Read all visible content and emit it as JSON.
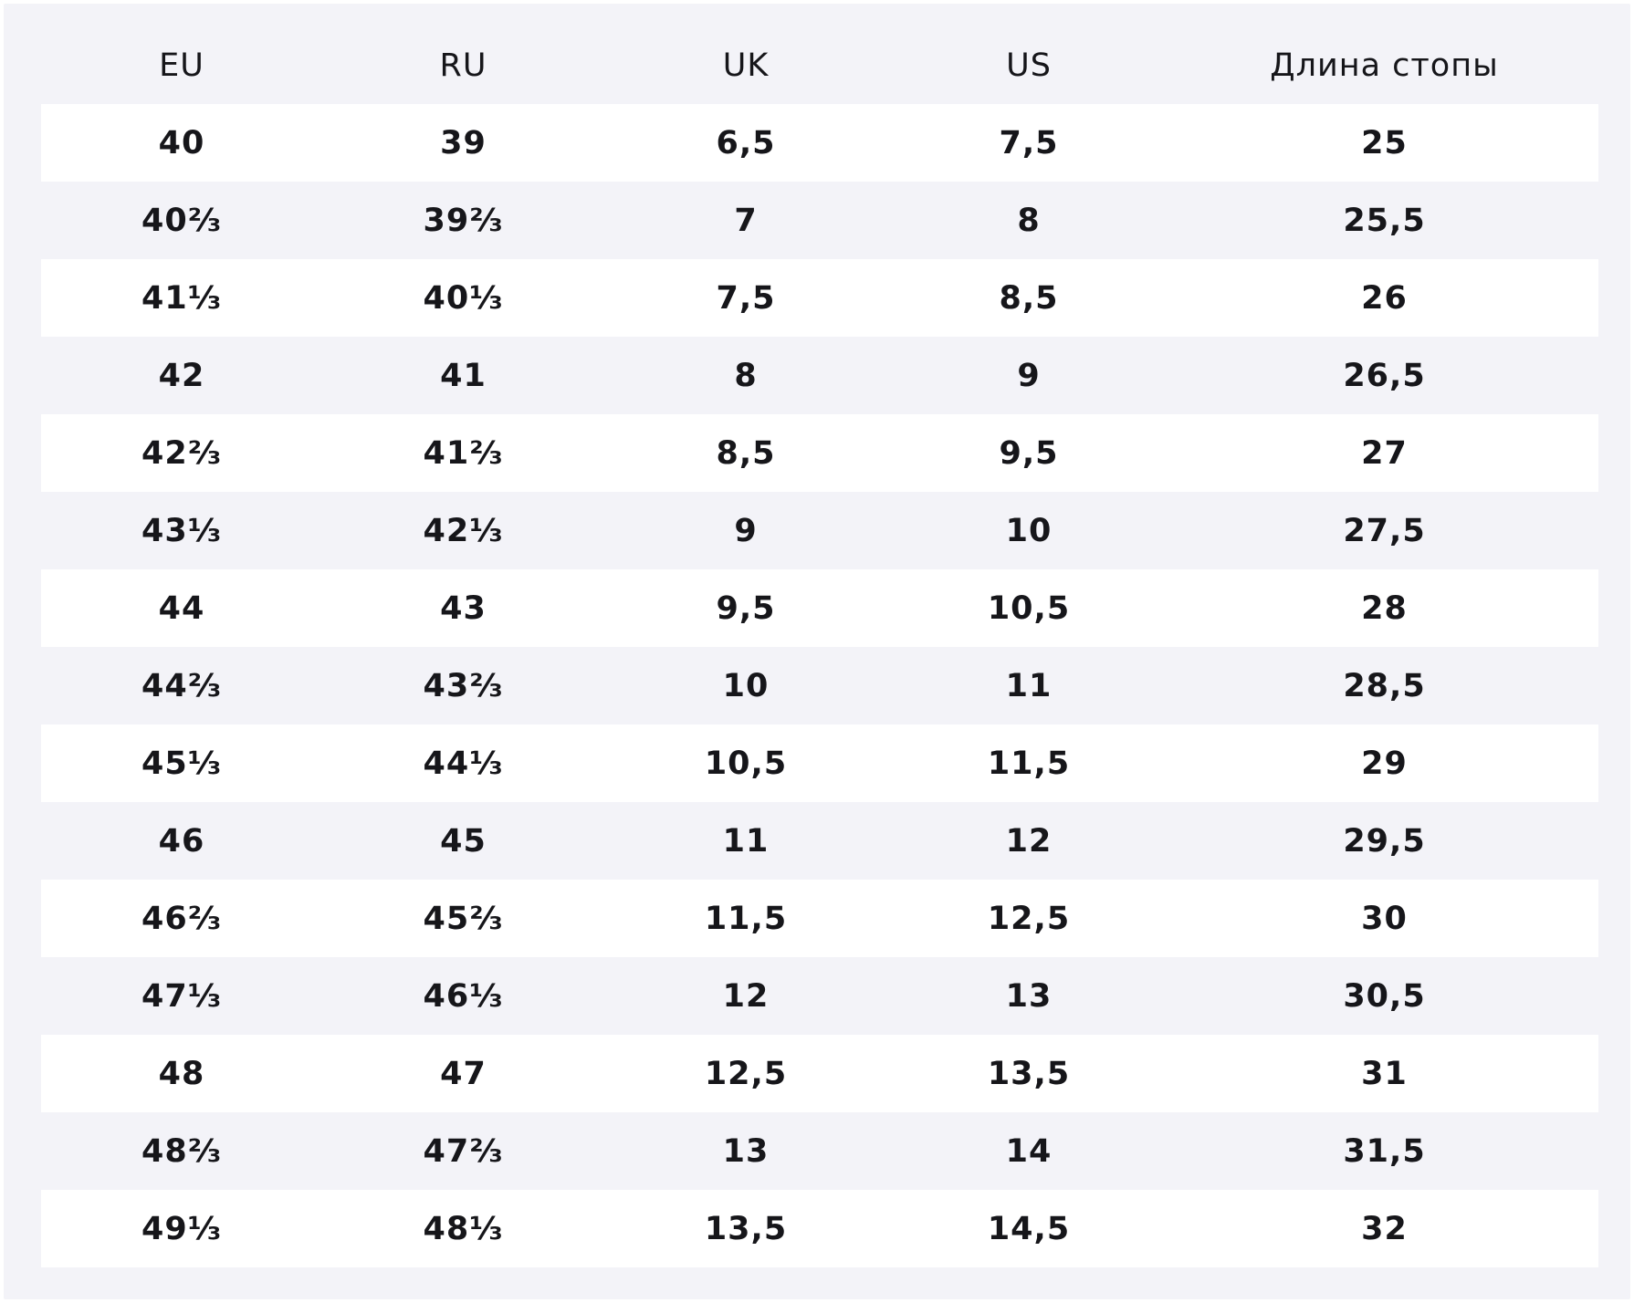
{
  "size_table": {
    "headers": [
      "EU",
      "RU",
      "UK",
      "US",
      "Длина стопы"
    ],
    "rows": [
      [
        "40",
        "39",
        "6,5",
        "7,5",
        "25"
      ],
      [
        "40⅔",
        "39⅔",
        "7",
        "8",
        "25,5"
      ],
      [
        "41⅓",
        "40⅓",
        "7,5",
        "8,5",
        "26"
      ],
      [
        "42",
        "41",
        "8",
        "9",
        "26,5"
      ],
      [
        "42⅔",
        "41⅔",
        "8,5",
        "9,5",
        "27"
      ],
      [
        "43⅓",
        "42⅓",
        "9",
        "10",
        "27,5"
      ],
      [
        "44",
        "43",
        "9,5",
        "10,5",
        "28"
      ],
      [
        "44⅔",
        "43⅔",
        "10",
        "11",
        "28,5"
      ],
      [
        "45⅓",
        "44⅓",
        "10,5",
        "11,5",
        "29"
      ],
      [
        "46",
        "45",
        "11",
        "12",
        "29,5"
      ],
      [
        "46⅔",
        "45⅔",
        "11,5",
        "12,5",
        "30"
      ],
      [
        "47⅓",
        "46⅓",
        "12",
        "13",
        "30,5"
      ],
      [
        "48",
        "47",
        "12,5",
        "13,5",
        "31"
      ],
      [
        "48⅔",
        "47⅔",
        "13",
        "14",
        "31,5"
      ],
      [
        "49⅓",
        "48⅓",
        "13,5",
        "14,5",
        "32"
      ]
    ]
  },
  "colors": {
    "background": "#f3f3f8",
    "stripe": "#ffffff",
    "text": "#16161a"
  }
}
